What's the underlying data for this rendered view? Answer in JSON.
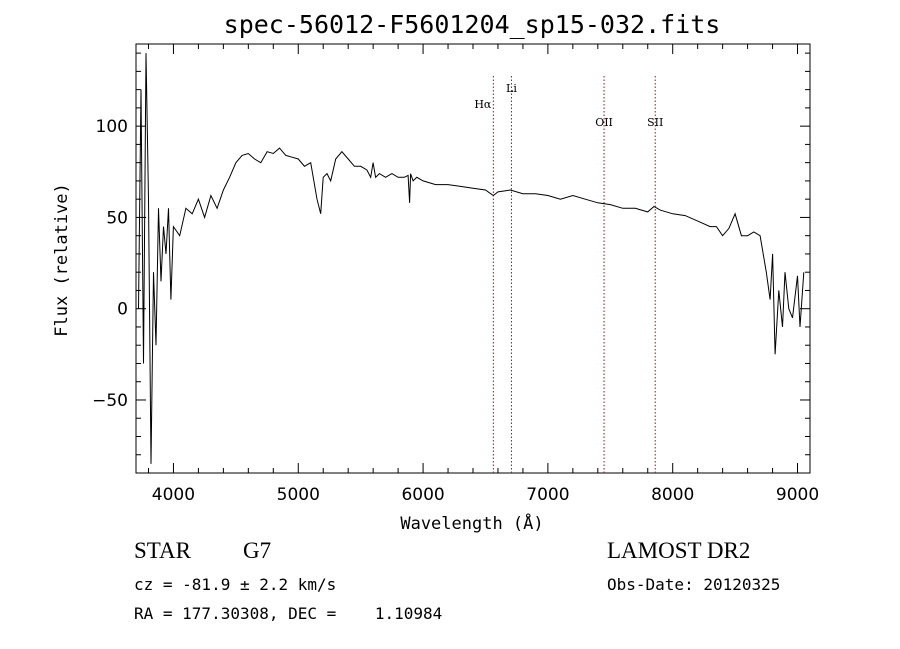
{
  "chart_data": {
    "type": "line",
    "title": "spec-56012-F5601204_sp15-032.fits",
    "xlabel": "Wavelength (Å)",
    "ylabel": "Flux (relative)",
    "xlim": [
      3700,
      9100
    ],
    "ylim": [
      -90,
      145
    ],
    "xticks": [
      4000,
      5000,
      6000,
      7000,
      8000,
      9000
    ],
    "yticks": [
      -50,
      0,
      50,
      100
    ],
    "grid": false,
    "series": [
      {
        "color": "#000000",
        "x": [
          3720,
          3740,
          3760,
          3780,
          3800,
          3820,
          3840,
          3860,
          3880,
          3900,
          3920,
          3940,
          3960,
          3980,
          4000,
          4050,
          4100,
          4150,
          4200,
          4250,
          4300,
          4350,
          4400,
          4450,
          4500,
          4550,
          4600,
          4650,
          4700,
          4750,
          4800,
          4850,
          4900,
          4950,
          5000,
          5050,
          5100,
          5150,
          5180,
          5200,
          5230,
          5260,
          5300,
          5350,
          5400,
          5450,
          5500,
          5550,
          5580,
          5600,
          5620,
          5650,
          5700,
          5750,
          5800,
          5850,
          5880,
          5892,
          5900,
          5920,
          5950,
          6000,
          6100,
          6200,
          6300,
          6400,
          6500,
          6563,
          6600,
          6700,
          6800,
          6900,
          7000,
          7100,
          7200,
          7300,
          7400,
          7500,
          7600,
          7700,
          7800,
          7850,
          7900,
          8000,
          8100,
          8200,
          8300,
          8350,
          8400,
          8450,
          8500,
          8550,
          8600,
          8650,
          8700,
          8750,
          8780,
          8800,
          8820,
          8850,
          8880,
          8900,
          8930,
          8960,
          9000,
          9020,
          9050
        ],
        "y": [
          0,
          120,
          -30,
          140,
          60,
          -85,
          20,
          -20,
          55,
          15,
          45,
          30,
          55,
          5,
          45,
          40,
          55,
          52,
          60,
          50,
          62,
          55,
          65,
          72,
          80,
          84,
          85,
          82,
          80,
          86,
          85,
          88,
          84,
          83,
          82,
          78,
          80,
          60,
          52,
          72,
          74,
          70,
          82,
          86,
          82,
          78,
          78,
          76,
          72,
          80,
          72,
          74,
          72,
          74,
          72,
          72,
          73,
          58,
          74,
          70,
          72,
          70,
          68,
          68,
          67,
          66,
          65,
          62,
          64,
          65,
          63,
          63,
          62,
          60,
          62,
          60,
          58,
          57,
          55,
          55,
          53,
          56,
          54,
          52,
          51,
          48,
          45,
          45,
          40,
          44,
          52,
          40,
          40,
          42,
          40,
          20,
          5,
          30,
          -25,
          10,
          -10,
          20,
          0,
          -5,
          18,
          -10,
          20
        ]
      }
    ],
    "annotations": [
      {
        "label": "Hα",
        "x": 6563
      },
      {
        "label": "Li",
        "x": 6708
      },
      {
        "label": "OII",
        "x": 7450
      },
      {
        "label": "SII",
        "x": 7860
      }
    ],
    "annotation_line_color": "#8b1a1a"
  },
  "info": {
    "class_label": "STAR",
    "subclass_label": "G7",
    "survey_label": "LAMOST DR2",
    "cz_text": "cz = -81.9 ± 2.2 km/s",
    "obs_date_text": "Obs-Date: 20120325",
    "radec_text": "RA = 177.30308, DEC =    1.10984"
  }
}
